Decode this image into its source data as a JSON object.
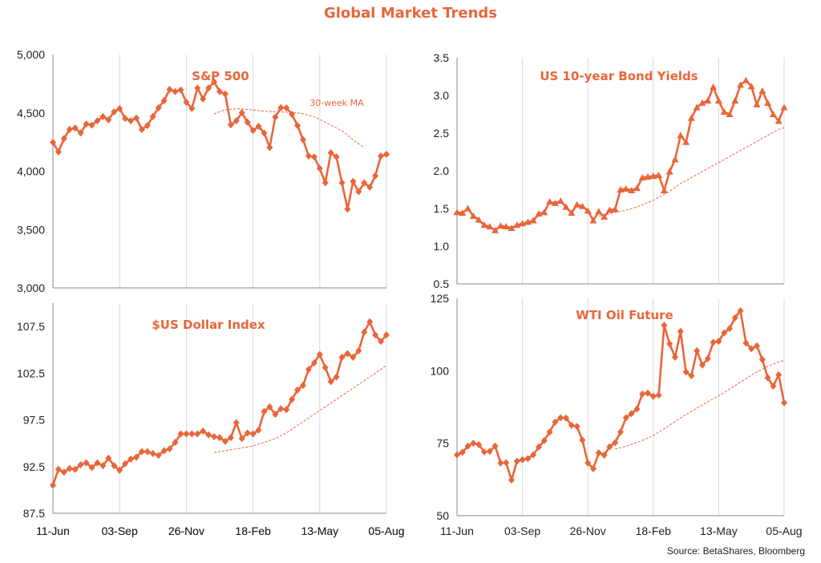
{
  "page": {
    "title": "Global Market Trends",
    "source": "Source:  BetaShares, Bloomberg"
  },
  "colors": {
    "accent": "#e8663a",
    "grid": "#d9d9d9",
    "text": "#222222"
  },
  "chart_data": [
    {
      "id": "sp500",
      "type": "line",
      "title": "S&P 500",
      "ylim": [
        3000,
        5000
      ],
      "yticks": [
        "3,000",
        "3,500",
        "4,000",
        "4,500",
        "5,000"
      ],
      "ytick_values": [
        3000,
        3500,
        4000,
        4500,
        5000
      ],
      "xticks": [
        "11-Jun",
        "03-Sep",
        "26-Nov",
        "18-Feb",
        "13-May",
        "05-Aug"
      ],
      "marker": "diamond",
      "grid": "vertical",
      "annotation": "30-week MA",
      "series": [
        {
          "values": [
            4247,
            4166,
            4280,
            4358,
            4370,
            4328,
            4405,
            4395,
            4432,
            4468,
            4441,
            4509,
            4537,
            4452,
            4432,
            4455,
            4357,
            4392,
            4469,
            4544,
            4605,
            4701,
            4682,
            4697,
            4591,
            4538,
            4712,
            4620,
            4713,
            4766,
            4682,
            4662,
            4398,
            4432,
            4502,
            4420,
            4349,
            4385,
            4327,
            4204,
            4463,
            4545,
            4543,
            4488,
            4392,
            4271,
            4131,
            4123,
            4024,
            3901,
            4158,
            4123,
            3901,
            3675,
            3912,
            3825,
            3900,
            3863,
            3961,
            4130,
            4145
          ]
        },
        {
          "dashed": true,
          "start": 29,
          "values": [
            4490,
            4510,
            4525,
            4530,
            4535,
            4535,
            4530,
            4525,
            4520,
            4515,
            4512,
            4510,
            4508,
            4506,
            4504,
            4500,
            4492,
            4480,
            4465,
            4445,
            4420,
            4395,
            4370,
            4345,
            4310,
            4270,
            4235,
            4200
          ]
        }
      ]
    },
    {
      "id": "bond",
      "type": "line",
      "title": "US 10-year Bond Yields",
      "ylim": [
        0.5,
        3.5
      ],
      "yticks": [
        "0.5",
        "1.0",
        "1.5",
        "2.0",
        "2.5",
        "3.0",
        "3.5"
      ],
      "ytick_values": [
        0.5,
        1.0,
        1.5,
        2.0,
        2.5,
        3.0,
        3.5
      ],
      "xticks": [],
      "marker": "triangle",
      "grid": "vertical",
      "series": [
        {
          "values": [
            1.45,
            1.44,
            1.5,
            1.4,
            1.35,
            1.28,
            1.26,
            1.21,
            1.27,
            1.26,
            1.24,
            1.28,
            1.3,
            1.32,
            1.34,
            1.43,
            1.45,
            1.59,
            1.57,
            1.6,
            1.52,
            1.44,
            1.55,
            1.53,
            1.47,
            1.34,
            1.46,
            1.39,
            1.48,
            1.49,
            1.75,
            1.76,
            1.74,
            1.77,
            1.91,
            1.92,
            1.93,
            1.94,
            1.74,
            1.99,
            2.15,
            2.47,
            2.38,
            2.7,
            2.84,
            2.9,
            2.93,
            3.11,
            2.93,
            2.78,
            2.75,
            2.93,
            3.14,
            3.2,
            3.12,
            2.88,
            3.06,
            2.9,
            2.75,
            2.66,
            2.84
          ]
        },
        {
          "dashed": true,
          "start": 26,
          "values": [
            1.4,
            1.41,
            1.43,
            1.45,
            1.46,
            1.48,
            1.5,
            1.52,
            1.55,
            1.58,
            1.61,
            1.65,
            1.69,
            1.73,
            1.78,
            1.83,
            1.87,
            1.91,
            1.95,
            1.99,
            2.03,
            2.07,
            2.11,
            2.15,
            2.19,
            2.23,
            2.27,
            2.31,
            2.35,
            2.39,
            2.43,
            2.47,
            2.51,
            2.55,
            2.57
          ]
        }
      ]
    },
    {
      "id": "dollar",
      "type": "line",
      "title": "$US Dollar Index",
      "ylim": [
        87.5,
        110
      ],
      "yticks": [
        "87.5",
        "92.5",
        "97.5",
        "102.5",
        "107.5"
      ],
      "ytick_values": [
        87.5,
        92.5,
        97.5,
        102.5,
        107.5
      ],
      "xticks": [
        "11-Jun",
        "03-Sep",
        "26-Nov",
        "18-Feb",
        "13-May",
        "05-Aug"
      ],
      "marker": "diamond",
      "grid": "vertical",
      "series": [
        {
          "values": [
            90.5,
            92.2,
            91.9,
            92.3,
            92.2,
            92.7,
            92.9,
            92.4,
            92.9,
            92.6,
            93.4,
            92.6,
            92.1,
            92.8,
            93.3,
            93.5,
            94.1,
            94.1,
            93.9,
            93.7,
            94.2,
            94.4,
            95.1,
            96.0,
            96.0,
            96.0,
            96.0,
            96.3,
            95.9,
            95.7,
            95.6,
            95.2,
            95.6,
            97.2,
            95.5,
            96.1,
            96.0,
            96.4,
            98.4,
            98.9,
            98.1,
            98.7,
            98.6,
            99.7,
            100.7,
            101.2,
            102.9,
            103.6,
            104.5,
            103.1,
            101.6,
            102.1,
            104.2,
            104.6,
            104.2,
            104.9,
            106.9,
            108.0,
            106.6,
            105.9,
            106.6
          ]
        },
        {
          "dashed": true,
          "start": 29,
          "values": [
            94.0,
            94.1,
            94.2,
            94.3,
            94.4,
            94.5,
            94.6,
            94.7,
            94.9,
            95.1,
            95.3,
            95.5,
            95.8,
            96.1,
            96.5,
            96.9,
            97.3,
            97.7,
            98.1,
            98.5,
            98.9,
            99.3,
            99.7,
            100.1,
            100.5,
            100.9,
            101.3,
            101.7,
            102.1,
            102.5,
            102.9,
            103.4
          ]
        }
      ]
    },
    {
      "id": "oil",
      "type": "line",
      "title": "WTI Oil Future",
      "ylim": [
        50,
        125
      ],
      "yticks": [
        "50",
        "75",
        "100",
        "125"
      ],
      "ytick_values": [
        50,
        75,
        100,
        125
      ],
      "xticks": [
        "11-Jun",
        "03-Sep",
        "26-Nov",
        "18-Feb",
        "13-May",
        "05-Aug"
      ],
      "marker": "diamond",
      "grid": "vertical",
      "series": [
        {
          "values": [
            71.0,
            71.9,
            74.0,
            75.0,
            74.5,
            72.0,
            72.2,
            74.0,
            68.2,
            68.3,
            62.3,
            68.8,
            69.3,
            69.7,
            71.0,
            73.7,
            75.9,
            78.9,
            82.3,
            83.8,
            83.7,
            81.2,
            80.8,
            76.1,
            68.2,
            66.2,
            71.7,
            70.9,
            73.8,
            75.2,
            78.9,
            83.8,
            85.2,
            86.8,
            92.0,
            92.3,
            91.2,
            91.6,
            115.7,
            109.3,
            104.7,
            113.6,
            99.6,
            98.3,
            106.9,
            102.0,
            104.2,
            109.8,
            110.2,
            113.1,
            114.6,
            118.3,
            120.7,
            109.6,
            107.6,
            108.6,
            103.9,
            97.6,
            94.7,
            98.6,
            89.0
          ]
        },
        {
          "dashed": true,
          "start": 29,
          "values": [
            73.0,
            73.5,
            74.0,
            74.6,
            75.3,
            76.0,
            76.8,
            77.7,
            78.8,
            80.0,
            81.3,
            82.5,
            83.7,
            84.9,
            86.0,
            87.1,
            88.2,
            89.3,
            90.3,
            91.3,
            92.5,
            93.7,
            94.9,
            96.1,
            97.3,
            98.5,
            99.6,
            100.6,
            101.5,
            102.3,
            103.0,
            103.6
          ]
        }
      ]
    }
  ]
}
